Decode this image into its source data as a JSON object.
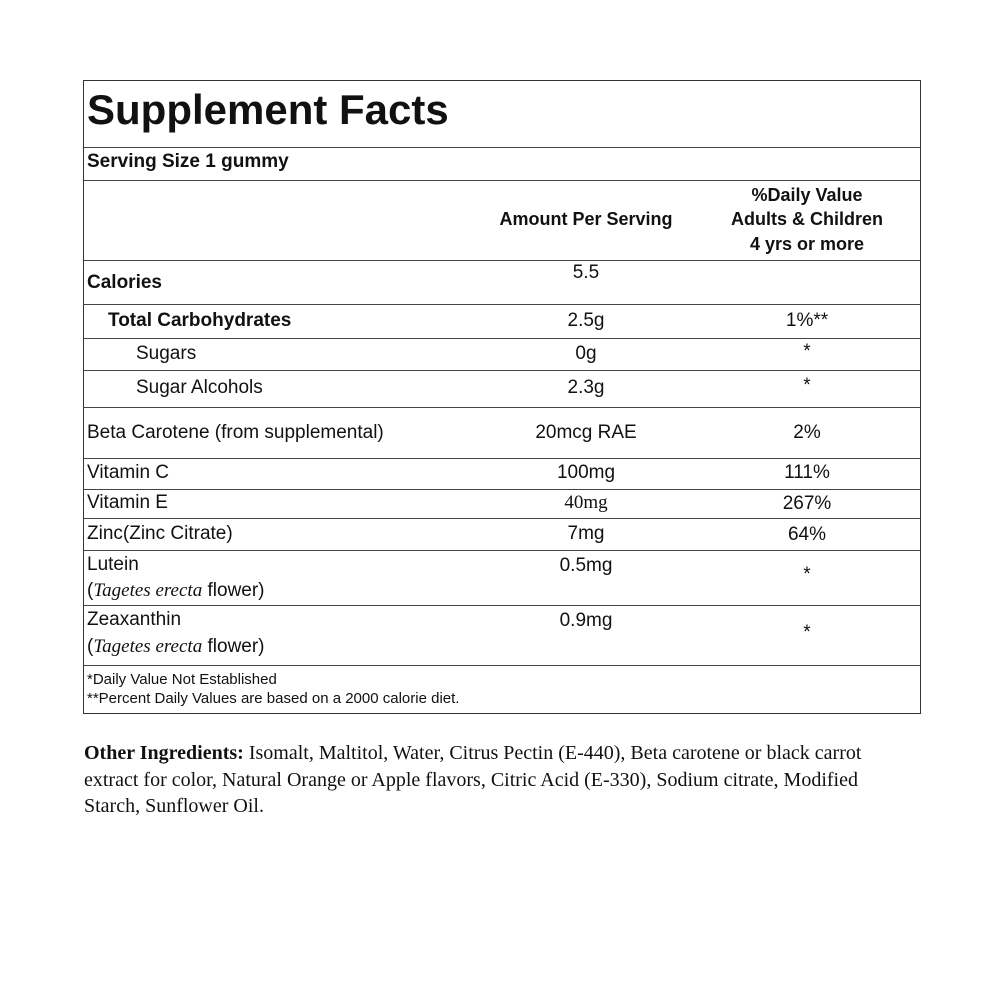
{
  "title": "Supplement Facts",
  "serving_size": "Serving Size 1 gummy",
  "header": {
    "amount": "Amount Per Serving",
    "daily_value": [
      "%Daily Value",
      "Adults & Children",
      "4 yrs or more"
    ]
  },
  "rows": [
    {
      "name": "Calories",
      "amount": "5.5"
    },
    {
      "name": "Total Carbohydrates",
      "amount": "2.5g",
      "dv": "1%**"
    },
    {
      "name": "Sugars",
      "amount": "0g",
      "dv": "*"
    },
    {
      "name": "Sugar Alcohols",
      "amount": "2.3g",
      "dv": "*"
    },
    {
      "name": "Beta Carotene (from supplemental)",
      "amount": "20mcg RAE",
      "dv": "2%"
    },
    {
      "name": "Vitamin C",
      "amount": "100mg",
      "dv": "111%"
    },
    {
      "name": "Vitamin E",
      "amount": "40mg",
      "dv": "267%"
    },
    {
      "name": "Zinc(Zinc Citrate)",
      "amount": "7mg",
      "dv": "64%"
    },
    {
      "name": "Lutein",
      "source": [
        "(",
        "Tagetes erecta",
        " flower)"
      ],
      "amount": "0.5mg",
      "dv": "*"
    },
    {
      "name": "Zeaxanthin",
      "source": [
        "(",
        "Tagetes erecta",
        " flower)"
      ],
      "amount": "0.9mg",
      "dv": "*"
    }
  ],
  "footnotes": [
    "*Daily Value Not Established",
    "**Percent Daily Values are based on a 2000 calorie diet."
  ],
  "other_ingredients": {
    "label": "Other Ingredients:",
    "text": " Isomalt, Maltitol, Water, Citrus Pectin (E-440), Beta carotene or black carrot extract for color, Natural Orange or Apple flavors, Citric Acid (E-330), Sodium citrate, Modified Starch, Sunflower Oil."
  }
}
